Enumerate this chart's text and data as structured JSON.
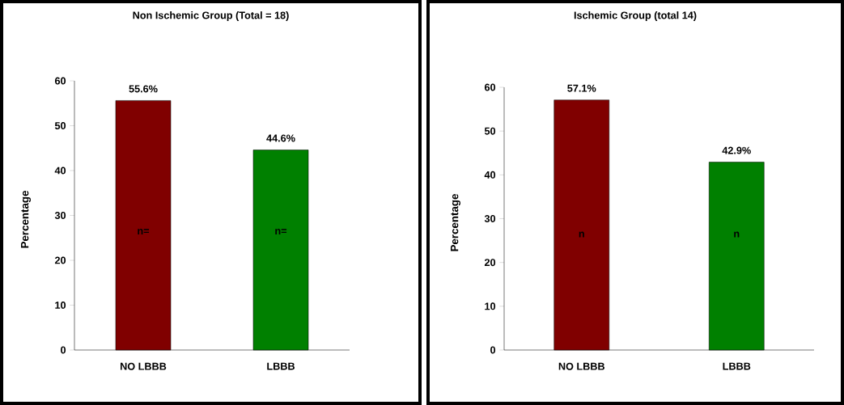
{
  "chart_data": [
    {
      "type": "bar",
      "title": "Non Ischemic Group (Total = 18)",
      "ylabel": "Percentage",
      "categories": [
        "NO LBBB",
        "LBBB"
      ],
      "values": [
        55.6,
        44.6
      ],
      "value_labels": [
        "55.6%",
        "44.6%"
      ],
      "colors": [
        "#800000",
        "#008000"
      ],
      "ylim": [
        0,
        60
      ],
      "yticks": [
        0,
        10,
        20,
        30,
        40,
        50,
        60
      ],
      "annotations": [
        "n=",
        "n="
      ]
    },
    {
      "type": "bar",
      "title": "Ischemic Group (total 14)",
      "ylabel": "Percentage",
      "categories": [
        "NO LBBB",
        "LBBB"
      ],
      "values": [
        57.1,
        42.9
      ],
      "value_labels": [
        "57.1%",
        "42.9%"
      ],
      "colors": [
        "#800000",
        "#008000"
      ],
      "ylim": [
        0,
        60
      ],
      "yticks": [
        0,
        10,
        20,
        30,
        40,
        50,
        60
      ],
      "annotations": [
        "n",
        "n"
      ]
    }
  ]
}
